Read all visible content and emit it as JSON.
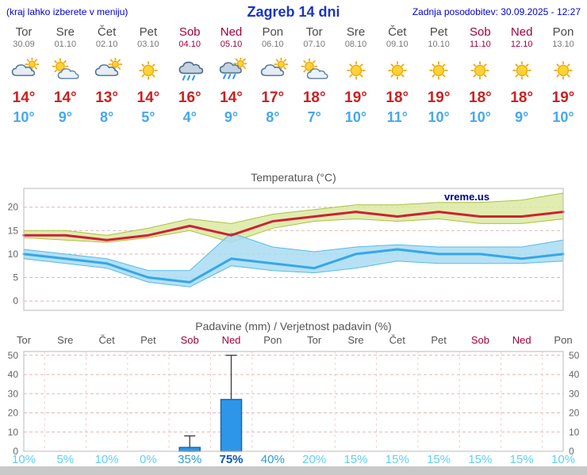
{
  "header": {
    "note": "(kraj lahko izberete v meniju)",
    "title": "Zagreb 14 dni",
    "updated": "Zadnja posodobitev: 30.09.2025 - 12:27"
  },
  "colors": {
    "accent_blue": "#0000CC",
    "weekend_red": "#A1003C",
    "max_temp_red": "#CC2020",
    "min_temp_blue": "#44A8F0",
    "prob_low": "#5FD0F5",
    "prob_high": "#0857B4",
    "bar_blue": "#2D96E8"
  },
  "days": [
    {
      "name": "Tor",
      "date": "30.09",
      "weekend": false,
      "icon": "mostly-cloudy",
      "tmax": "14°",
      "tmin": "10°"
    },
    {
      "name": "Sre",
      "date": "01.10",
      "weekend": false,
      "icon": "partly-cloudy",
      "tmax": "14°",
      "tmin": "9°"
    },
    {
      "name": "Čet",
      "date": "02.10",
      "weekend": false,
      "icon": "mostly-cloudy",
      "tmax": "13°",
      "tmin": "8°"
    },
    {
      "name": "Pet",
      "date": "03.10",
      "weekend": false,
      "icon": "sunny",
      "tmax": "14°",
      "tmin": "5°"
    },
    {
      "name": "Sob",
      "date": "04.10",
      "weekend": true,
      "icon": "rain",
      "tmax": "16°",
      "tmin": "4°"
    },
    {
      "name": "Ned",
      "date": "05.10",
      "weekend": true,
      "icon": "rain-sun",
      "tmax": "14°",
      "tmin": "9°"
    },
    {
      "name": "Pon",
      "date": "06.10",
      "weekend": false,
      "icon": "mostly-cloudy",
      "tmax": "17°",
      "tmin": "8°"
    },
    {
      "name": "Tor",
      "date": "07.10",
      "weekend": false,
      "icon": "partly-cloudy",
      "tmax": "18°",
      "tmin": "7°"
    },
    {
      "name": "Sre",
      "date": "08.10",
      "weekend": false,
      "icon": "sunny",
      "tmax": "19°",
      "tmin": "10°"
    },
    {
      "name": "Čet",
      "date": "09.10",
      "weekend": false,
      "icon": "sunny",
      "tmax": "18°",
      "tmin": "11°"
    },
    {
      "name": "Pet",
      "date": "10.10",
      "weekend": false,
      "icon": "sunny",
      "tmax": "19°",
      "tmin": "10°"
    },
    {
      "name": "Sob",
      "date": "11.10",
      "weekend": true,
      "icon": "sunny",
      "tmax": "18°",
      "tmin": "10°"
    },
    {
      "name": "Ned",
      "date": "12.10",
      "weekend": true,
      "icon": "sunny",
      "tmax": "18°",
      "tmin": "9°"
    },
    {
      "name": "Pon",
      "date": "13.10",
      "weekend": false,
      "icon": "sunny",
      "tmax": "19°",
      "tmin": "10°"
    }
  ],
  "chart_data": [
    {
      "type": "line",
      "title": "Temperatura (°C)",
      "watermark": "vreme.us",
      "x": [
        "Tor",
        "Sre",
        "Čet",
        "Pet",
        "Sob",
        "Ned",
        "Pon",
        "Tor",
        "Sre",
        "Čet",
        "Pet",
        "Sob",
        "Ned",
        "Pon"
      ],
      "ylim": [
        -2,
        24
      ],
      "yticks": [
        0,
        5,
        10,
        15,
        20
      ],
      "series": [
        {
          "name": "max-temp",
          "color": "#CC2233",
          "band_color": "#DCE9A2",
          "band_edge": "#A9C23F",
          "values": [
            14,
            14,
            13,
            14,
            16,
            14,
            17,
            18,
            19,
            18,
            19,
            18,
            18,
            19
          ],
          "band_hi": [
            15,
            15,
            14,
            15.5,
            17.5,
            16.5,
            18.5,
            19.5,
            20.5,
            20.5,
            21,
            21,
            21.5,
            23
          ],
          "band_lo": [
            13.5,
            13,
            12.5,
            13.5,
            15,
            12.5,
            15.5,
            17,
            17.5,
            17,
            17.5,
            16.5,
            16.5,
            17.5
          ]
        },
        {
          "name": "min-temp",
          "color": "#35A7E8",
          "band_color": "#A9DCF2",
          "band_edge": "#55BBE8",
          "values": [
            10,
            9,
            8,
            5,
            4,
            9,
            8,
            7,
            10,
            11,
            10,
            10,
            9,
            10
          ],
          "band_hi": [
            11,
            10,
            9,
            6.5,
            6.5,
            14.5,
            11.5,
            10.5,
            11.5,
            12,
            11.5,
            11.5,
            11.5,
            13
          ],
          "band_lo": [
            9,
            8,
            7,
            4,
            3,
            7.5,
            6.5,
            6,
            7,
            8.5,
            8,
            8,
            8,
            8.5
          ]
        }
      ]
    },
    {
      "type": "bar",
      "title": "Padavine (mm) / Verjetnost padavin (%)",
      "x": [
        "Tor",
        "Sre",
        "Čet",
        "Pet",
        "Sob",
        "Ned",
        "Pon",
        "Tor",
        "Sre",
        "Čet",
        "Pet",
        "Sob",
        "Ned",
        "Pon"
      ],
      "ylim": [
        0,
        52
      ],
      "yticks": [
        0,
        10,
        20,
        30,
        40,
        50
      ],
      "bar_color": "#2D96E8",
      "bar_edge": "#1668B0",
      "values": [
        0,
        0,
        0,
        0,
        2,
        27,
        0,
        0,
        0,
        0,
        0,
        0,
        0,
        0
      ],
      "whiskers": [
        null,
        null,
        null,
        null,
        {
          "lo": 0,
          "hi": 8
        },
        {
          "lo": 4,
          "hi": 50
        },
        null,
        null,
        null,
        null,
        null,
        null,
        null,
        null
      ],
      "probabilities": [
        {
          "label": "10%",
          "level": "low"
        },
        {
          "label": "5%",
          "level": "low"
        },
        {
          "label": "10%",
          "level": "low"
        },
        {
          "label": "0%",
          "level": "low"
        },
        {
          "label": "35%",
          "level": "med"
        },
        {
          "label": "75%",
          "level": "high"
        },
        {
          "label": "40%",
          "level": "med"
        },
        {
          "label": "20%",
          "level": "low"
        },
        {
          "label": "15%",
          "level": "low"
        },
        {
          "label": "15%",
          "level": "low"
        },
        {
          "label": "15%",
          "level": "low"
        },
        {
          "label": "15%",
          "level": "low"
        },
        {
          "label": "15%",
          "level": "low"
        },
        {
          "label": "10%",
          "level": "low"
        }
      ]
    }
  ]
}
